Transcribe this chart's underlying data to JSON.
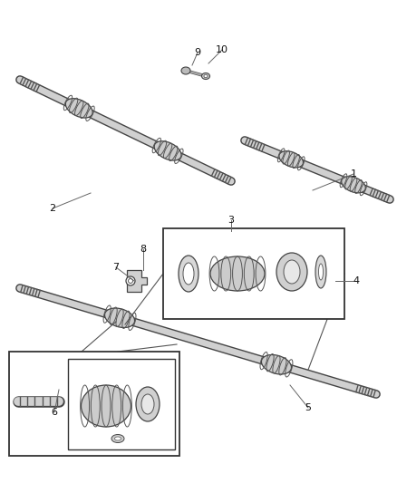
{
  "background_color": "#ffffff",
  "fig_width": 4.38,
  "fig_height": 5.33,
  "dpi": 100,
  "line_color": "#555555",
  "shaft_fill": "#d0d0d0",
  "shaft_edge": "#444444",
  "boot_fill": "#c8c8c8",
  "boot_edge": "#444444",
  "label_fontsize": 8,
  "label_color": "#111111",
  "box_edge": "#333333",
  "leader_color": "#666666"
}
